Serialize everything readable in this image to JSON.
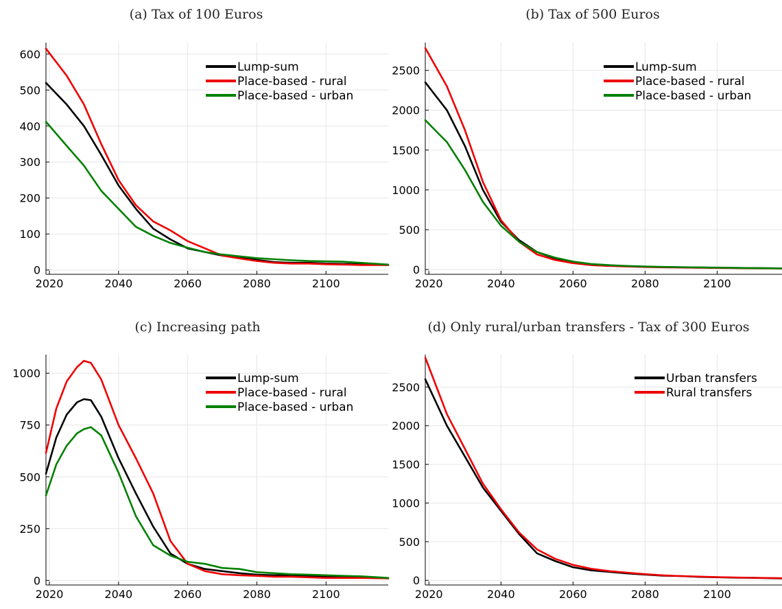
{
  "chart_data": [
    {
      "type": "line",
      "title": "(a) Tax of 100 Euros",
      "xlabel": "",
      "ylabel": "",
      "xlim": [
        2019,
        2118
      ],
      "ylim": [
        -12,
        632
      ],
      "xticks": [
        2020,
        2040,
        2060,
        2080,
        2100
      ],
      "yticks": [
        0,
        100,
        200,
        300,
        400,
        500,
        600
      ],
      "grid": true,
      "legend_position": "top-right",
      "x": [
        2019,
        2025,
        2030,
        2035,
        2040,
        2045,
        2050,
        2055,
        2060,
        2065,
        2070,
        2075,
        2080,
        2085,
        2090,
        2095,
        2100,
        2105,
        2110,
        2118
      ],
      "series": [
        {
          "name": "Lump-sum",
          "color": "#000000",
          "values": [
            520,
            460,
            400,
            320,
            235,
            170,
            115,
            85,
            60,
            50,
            40,
            35,
            28,
            22,
            20,
            20,
            18,
            17,
            16,
            14
          ]
        },
        {
          "name": "Place-based - rural",
          "color": "#ee0000",
          "values": [
            615,
            540,
            460,
            350,
            250,
            180,
            135,
            110,
            80,
            60,
            40,
            32,
            25,
            20,
            18,
            18,
            16,
            15,
            14,
            14
          ]
        },
        {
          "name": "Place-based - urban",
          "color": "#008000",
          "values": [
            412,
            345,
            290,
            220,
            170,
            120,
            95,
            75,
            62,
            50,
            43,
            38,
            33,
            30,
            27,
            25,
            24,
            23,
            20,
            15
          ]
        }
      ]
    },
    {
      "type": "line",
      "title": "(b) Tax of 500 Euros",
      "xlabel": "",
      "ylabel": "",
      "xlim": [
        2019,
        2118
      ],
      "ylim": [
        -60,
        2850
      ],
      "xticks": [
        2020,
        2040,
        2060,
        2080,
        2100
      ],
      "yticks": [
        0,
        500,
        1000,
        1500,
        2000,
        2500
      ],
      "grid": true,
      "legend_position": "top-right",
      "x": [
        2019,
        2025,
        2030,
        2035,
        2040,
        2045,
        2050,
        2055,
        2060,
        2065,
        2070,
        2075,
        2080,
        2085,
        2090,
        2095,
        2100,
        2105,
        2110,
        2118
      ],
      "series": [
        {
          "name": "Lump-sum",
          "color": "#000000",
          "values": [
            2350,
            2000,
            1550,
            1000,
            600,
            370,
            220,
            140,
            90,
            65,
            50,
            42,
            35,
            30,
            28,
            25,
            22,
            20,
            18,
            15
          ]
        },
        {
          "name": "Place-based - rural",
          "color": "#ee0000",
          "values": [
            2780,
            2300,
            1750,
            1100,
            620,
            350,
            190,
            120,
            80,
            55,
            45,
            38,
            32,
            28,
            25,
            22,
            20,
            18,
            16,
            14
          ]
        },
        {
          "name": "Place-based - urban",
          "color": "#008000",
          "values": [
            1875,
            1600,
            1250,
            850,
            550,
            350,
            220,
            150,
            100,
            70,
            55,
            45,
            38,
            33,
            30,
            27,
            24,
            21,
            18,
            15
          ]
        }
      ]
    },
    {
      "type": "line",
      "title": "(c) Increasing path",
      "xlabel": "",
      "ylabel": "",
      "xlim": [
        2019,
        2118
      ],
      "ylim": [
        -22,
        1090
      ],
      "xticks": [
        2020,
        2040,
        2060,
        2080,
        2100
      ],
      "yticks": [
        0,
        250,
        500,
        750,
        1000
      ],
      "grid": true,
      "legend_position": "top-right",
      "x": [
        2019,
        2022,
        2025,
        2028,
        2030,
        2032,
        2035,
        2040,
        2045,
        2050,
        2055,
        2060,
        2065,
        2070,
        2075,
        2080,
        2085,
        2090,
        2095,
        2100,
        2105,
        2110,
        2118
      ],
      "series": [
        {
          "name": "Lump-sum",
          "color": "#000000",
          "values": [
            515,
            690,
            800,
            860,
            875,
            870,
            790,
            590,
            420,
            260,
            130,
            80,
            55,
            45,
            35,
            28,
            25,
            25,
            22,
            20,
            18,
            15,
            10
          ]
        },
        {
          "name": "Place-based - rural",
          "color": "#ee0000",
          "values": [
            615,
            830,
            960,
            1030,
            1060,
            1050,
            970,
            750,
            590,
            420,
            190,
            80,
            45,
            30,
            25,
            22,
            18,
            18,
            15,
            12,
            12,
            12,
            10
          ]
        },
        {
          "name": "Place-based - urban",
          "color": "#008000",
          "values": [
            410,
            560,
            650,
            710,
            730,
            740,
            700,
            520,
            310,
            170,
            120,
            90,
            80,
            60,
            55,
            40,
            35,
            30,
            28,
            25,
            22,
            20,
            12
          ]
        }
      ]
    },
    {
      "type": "line",
      "title": "(d) Only rural/urban transfers - Tax of 300 Euros",
      "xlabel": "",
      "ylabel": "",
      "xlim": [
        2019,
        2118
      ],
      "ylim": [
        -60,
        2920
      ],
      "xticks": [
        2020,
        2040,
        2060,
        2080,
        2100
      ],
      "yticks": [
        0,
        500,
        1000,
        1500,
        2000,
        2500
      ],
      "grid": true,
      "legend_position": "top-right",
      "x": [
        2019,
        2025,
        2030,
        2035,
        2040,
        2045,
        2050,
        2055,
        2060,
        2065,
        2070,
        2075,
        2080,
        2085,
        2090,
        2095,
        2100,
        2105,
        2110,
        2118
      ],
      "series": [
        {
          "name": "Urban transfers",
          "color": "#000000",
          "values": [
            2600,
            2000,
            1600,
            1200,
            900,
            600,
            350,
            250,
            170,
            130,
            110,
            90,
            75,
            60,
            55,
            45,
            40,
            35,
            32,
            25
          ]
        },
        {
          "name": "Rural transfers",
          "color": "#ee0000",
          "values": [
            2880,
            2150,
            1700,
            1250,
            920,
            620,
            400,
            280,
            200,
            150,
            120,
            100,
            80,
            65,
            55,
            48,
            42,
            38,
            33,
            28
          ]
        }
      ]
    }
  ]
}
